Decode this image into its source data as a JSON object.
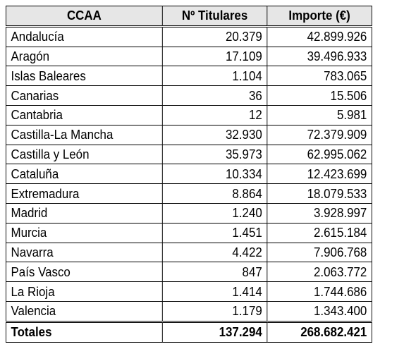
{
  "table": {
    "headers": {
      "ccaa": "CCAA",
      "titulares": "Nº Titulares",
      "importe": "Importe (€)"
    },
    "rows": [
      {
        "ccaa": "Andalucía",
        "titulares": "20.379",
        "importe": "42.899.926"
      },
      {
        "ccaa": "Aragón",
        "titulares": "17.109",
        "importe": "39.496.933"
      },
      {
        "ccaa": "Islas Baleares",
        "titulares": "1.104",
        "importe": "783.065"
      },
      {
        "ccaa": "Canarias",
        "titulares": "36",
        "importe": "15.506"
      },
      {
        "ccaa": "Cantabria",
        "titulares": "12",
        "importe": "5.981"
      },
      {
        "ccaa": "Castilla-La Mancha",
        "titulares": "32.930",
        "importe": "72.379.909"
      },
      {
        "ccaa": "Castilla y León",
        "titulares": "35.973",
        "importe": "62.995.062"
      },
      {
        "ccaa": "Cataluña",
        "titulares": "10.334",
        "importe": "12.423.699"
      },
      {
        "ccaa": "Extremadura",
        "titulares": "8.864",
        "importe": "18.079.533"
      },
      {
        "ccaa": "Madrid",
        "titulares": "1.240",
        "importe": "3.928.997"
      },
      {
        "ccaa": "Murcia",
        "titulares": "1.451",
        "importe": "2.615.184"
      },
      {
        "ccaa": "Navarra",
        "titulares": "4.422",
        "importe": "7.906.768"
      },
      {
        "ccaa": "País Vasco",
        "titulares": "847",
        "importe": "2.063.772"
      },
      {
        "ccaa": "La Rioja",
        "titulares": "1.414",
        "importe": "1.744.686"
      },
      {
        "ccaa": "Valencia",
        "titulares": "1.179",
        "importe": "1.343.400"
      }
    ],
    "totals": {
      "label": "Totales",
      "titulares": "137.294",
      "importe": "268.682.421"
    }
  }
}
